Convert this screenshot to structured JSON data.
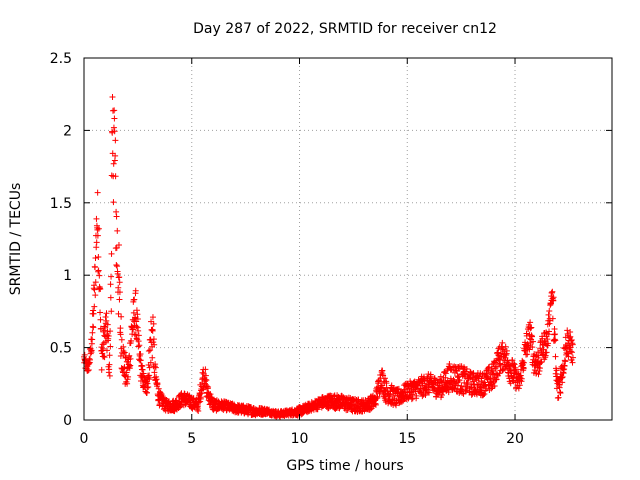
{
  "chart_data": {
    "type": "scatter",
    "title": "Day 287 of 2022, SRMTID for receiver cn12",
    "xlabel": "GPS time / hours",
    "ylabel": "SRMTID / TECUs",
    "xlim": [
      0,
      24.5
    ],
    "ylim": [
      0,
      2.5
    ],
    "grid": true,
    "marker": "+",
    "color": "#ff0000",
    "x_ticks": [
      {
        "value": 0,
        "label": "0"
      },
      {
        "value": 5,
        "label": "5"
      },
      {
        "value": 10,
        "label": "10"
      },
      {
        "value": 15,
        "label": "15"
      },
      {
        "value": 20,
        "label": "20"
      }
    ],
    "y_ticks": [
      {
        "value": 0,
        "label": "0"
      },
      {
        "value": 0.5,
        "label": "0.5"
      },
      {
        "value": 1,
        "label": "1"
      },
      {
        "value": 1.5,
        "label": "1.5"
      },
      {
        "value": 2,
        "label": "2"
      },
      {
        "value": 2.5,
        "label": "2.5"
      }
    ],
    "series": [
      {
        "name": "SRMTID",
        "envelope": [
          [
            0.0,
            0.42,
            0.05
          ],
          [
            0.1,
            0.37,
            0.04
          ],
          [
            0.2,
            0.36,
            0.04
          ],
          [
            0.3,
            0.45,
            0.06
          ],
          [
            0.4,
            0.62,
            0.12
          ],
          [
            0.5,
            0.92,
            0.2
          ],
          [
            0.6,
            1.4,
            0.25
          ],
          [
            0.7,
            1.2,
            0.3
          ],
          [
            0.8,
            0.45,
            0.12
          ],
          [
            0.9,
            0.5,
            0.12
          ],
          [
            1.0,
            0.62,
            0.15
          ],
          [
            1.1,
            0.55,
            0.15
          ],
          [
            1.2,
            0.35,
            0.12
          ],
          [
            1.3,
            1.6,
            0.6
          ],
          [
            1.4,
            2.05,
            0.3
          ],
          [
            1.5,
            1.3,
            0.4
          ],
          [
            1.6,
            1.0,
            0.35
          ],
          [
            1.7,
            0.6,
            0.2
          ],
          [
            1.8,
            0.45,
            0.15
          ],
          [
            1.9,
            0.35,
            0.12
          ],
          [
            2.0,
            0.3,
            0.1
          ],
          [
            2.1,
            0.4,
            0.12
          ],
          [
            2.2,
            0.6,
            0.12
          ],
          [
            2.3,
            0.7,
            0.15
          ],
          [
            2.4,
            0.75,
            0.15
          ],
          [
            2.5,
            0.55,
            0.15
          ],
          [
            2.6,
            0.4,
            0.1
          ],
          [
            2.7,
            0.3,
            0.08
          ],
          [
            2.8,
            0.25,
            0.06
          ],
          [
            2.9,
            0.22,
            0.06
          ],
          [
            3.0,
            0.35,
            0.12
          ],
          [
            3.1,
            0.55,
            0.2
          ],
          [
            3.2,
            0.6,
            0.2
          ],
          [
            3.3,
            0.3,
            0.1
          ],
          [
            3.5,
            0.15,
            0.05
          ],
          [
            3.8,
            0.1,
            0.04
          ],
          [
            4.2,
            0.1,
            0.04
          ],
          [
            4.6,
            0.15,
            0.05
          ],
          [
            5.0,
            0.12,
            0.04
          ],
          [
            5.3,
            0.1,
            0.04
          ],
          [
            5.5,
            0.28,
            0.08
          ],
          [
            5.6,
            0.32,
            0.08
          ],
          [
            5.7,
            0.2,
            0.06
          ],
          [
            6.0,
            0.1,
            0.04
          ],
          [
            6.5,
            0.1,
            0.03
          ],
          [
            7.0,
            0.08,
            0.03
          ],
          [
            7.5,
            0.07,
            0.03
          ],
          [
            8.0,
            0.06,
            0.03
          ],
          [
            8.5,
            0.06,
            0.02
          ],
          [
            9.0,
            0.04,
            0.02
          ],
          [
            9.5,
            0.05,
            0.02
          ],
          [
            10.0,
            0.06,
            0.03
          ],
          [
            10.5,
            0.09,
            0.03
          ],
          [
            11.0,
            0.12,
            0.04
          ],
          [
            11.5,
            0.13,
            0.05
          ],
          [
            12.0,
            0.12,
            0.05
          ],
          [
            12.5,
            0.1,
            0.05
          ],
          [
            13.0,
            0.1,
            0.04
          ],
          [
            13.5,
            0.13,
            0.05
          ],
          [
            13.8,
            0.3,
            0.08
          ],
          [
            14.0,
            0.2,
            0.08
          ],
          [
            14.5,
            0.15,
            0.06
          ],
          [
            15.0,
            0.2,
            0.06
          ],
          [
            15.5,
            0.22,
            0.07
          ],
          [
            16.0,
            0.25,
            0.07
          ],
          [
            16.5,
            0.22,
            0.07
          ],
          [
            17.0,
            0.3,
            0.1
          ],
          [
            17.5,
            0.28,
            0.1
          ],
          [
            18.0,
            0.25,
            0.08
          ],
          [
            18.5,
            0.25,
            0.08
          ],
          [
            19.0,
            0.3,
            0.1
          ],
          [
            19.2,
            0.4,
            0.1
          ],
          [
            19.5,
            0.45,
            0.1
          ],
          [
            19.8,
            0.35,
            0.1
          ],
          [
            20.0,
            0.3,
            0.08
          ],
          [
            20.2,
            0.25,
            0.06
          ],
          [
            20.5,
            0.5,
            0.1
          ],
          [
            20.7,
            0.6,
            0.1
          ],
          [
            20.9,
            0.4,
            0.1
          ],
          [
            21.1,
            0.4,
            0.1
          ],
          [
            21.3,
            0.5,
            0.1
          ],
          [
            21.5,
            0.55,
            0.1
          ],
          [
            21.7,
            0.88,
            0.05
          ],
          [
            21.8,
            0.7,
            0.15
          ],
          [
            21.9,
            0.3,
            0.15
          ],
          [
            22.0,
            0.2,
            0.1
          ],
          [
            22.2,
            0.35,
            0.1
          ],
          [
            22.4,
            0.55,
            0.1
          ],
          [
            22.6,
            0.5,
            0.1
          ],
          [
            22.7,
            0.45,
            0.08
          ]
        ]
      }
    ],
    "notes": "Dense scatter of '+' markers; values are an estimated envelope (x hours, mean y, spread)."
  }
}
